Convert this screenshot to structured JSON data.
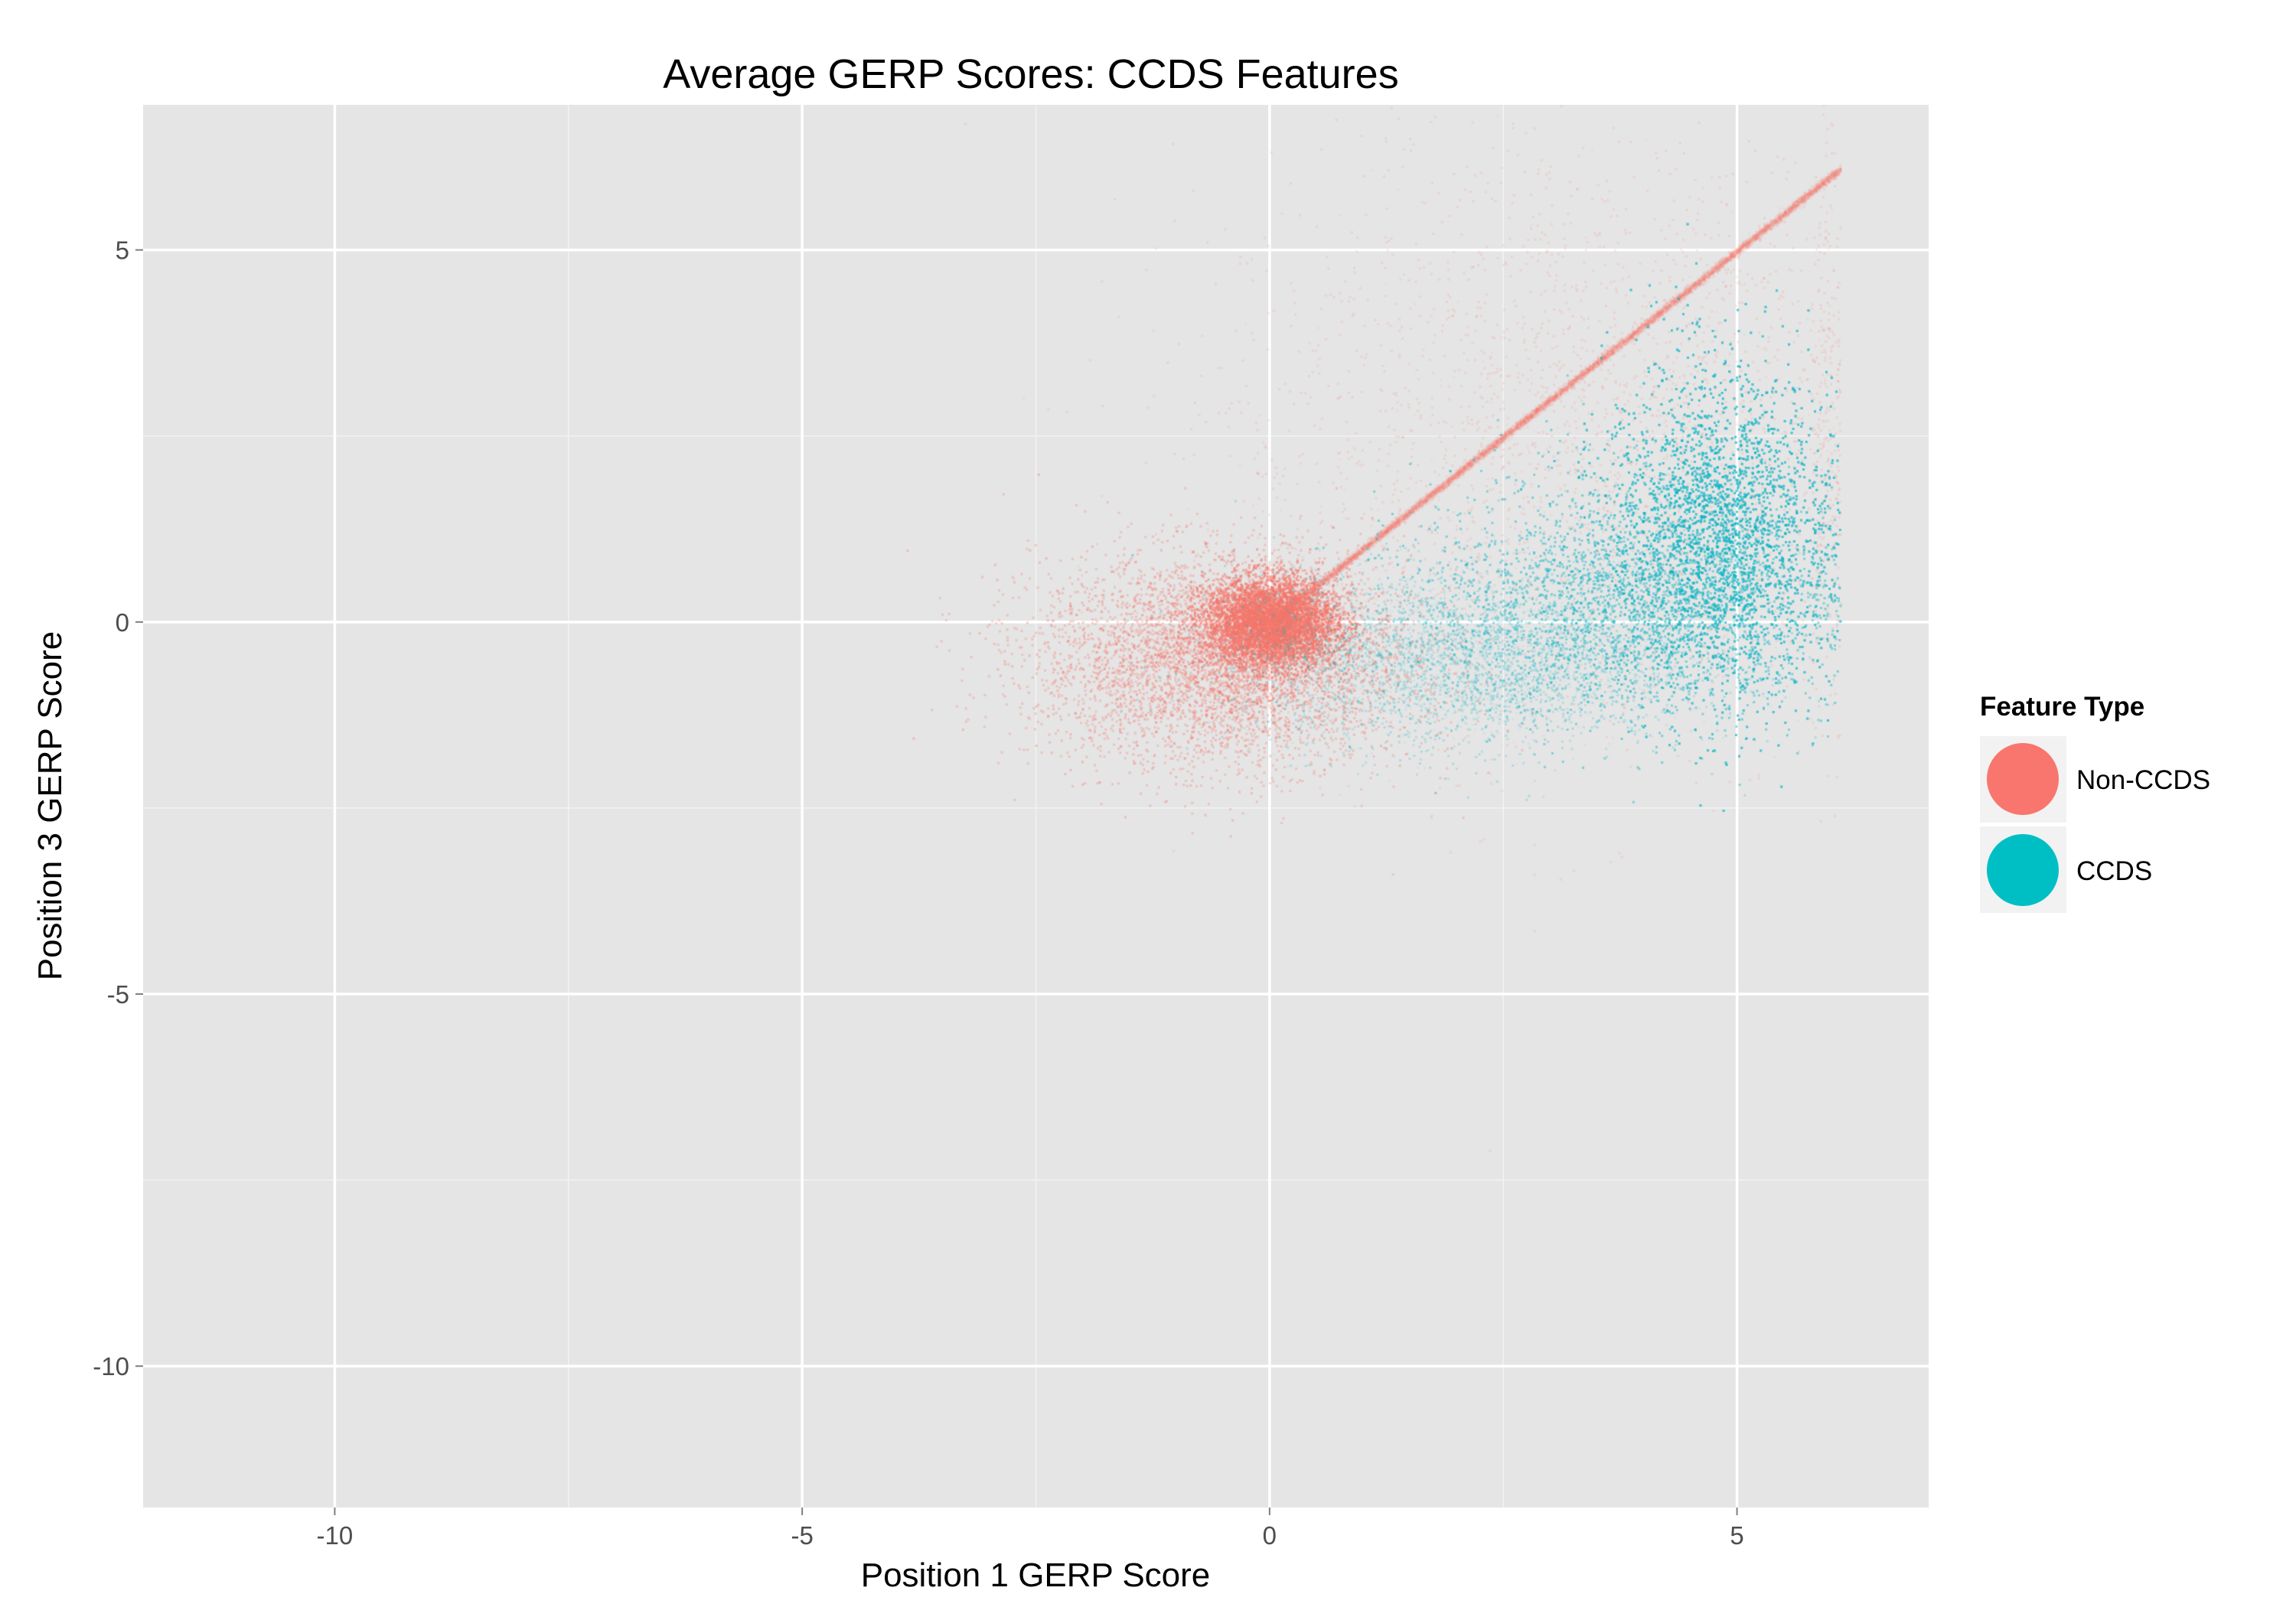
{
  "chart_data": {
    "type": "scatter",
    "title": "Average GERP Scores: CCDS Features",
    "xlabel": "Position 1 GERP Score",
    "ylabel": "Position 3 GERP Score",
    "xlim": [
      -12.05,
      7.05
    ],
    "ylim": [
      -11.9,
      6.95
    ],
    "x_ticks": [
      -10,
      -5,
      0,
      5
    ],
    "x_tick_labels": [
      "-10",
      "-5",
      "0",
      "5"
    ],
    "y_ticks": [
      5,
      0,
      -5,
      -10
    ],
    "y_tick_labels": [
      "5",
      "0",
      "-5",
      "-10"
    ],
    "grid": true,
    "legend": {
      "title": "Feature Type",
      "placement": "right",
      "entries": [
        {
          "label": "Non-CCDS",
          "color": "#F8766D"
        },
        {
          "label": "CCDS",
          "color": "#00BFC4"
        }
      ]
    },
    "series": [
      {
        "name": "Non-CCDS",
        "color": "#F8766D",
        "clusters": [
          {
            "x_center": 0.0,
            "y_center": 0.0,
            "x_spread": 0.35,
            "y_spread": 0.3,
            "density": "very high"
          },
          {
            "x_center": -0.5,
            "y_center": -0.5,
            "x_spread": 1.0,
            "y_spread": 0.7,
            "density": "high"
          },
          {
            "x_center": 3.5,
            "y_center": 2.5,
            "x_spread": 2.0,
            "y_spread": 2.0,
            "density": "low"
          },
          {
            "x_range": [
              0,
              6.1
            ],
            "y_equals_x": true,
            "description": "diagonal line y = x",
            "density": "medium"
          }
        ]
      },
      {
        "name": "CCDS",
        "color": "#00BFC4",
        "clusters": [
          {
            "x_center": 4.8,
            "y_center": 1.2,
            "x_spread": 0.6,
            "y_spread": 1.1,
            "density": "very high"
          },
          {
            "x_center": 3.8,
            "y_center": 0.3,
            "x_spread": 1.1,
            "y_spread": 0.8,
            "density": "high"
          },
          {
            "x_center": 2.0,
            "y_center": -0.5,
            "x_spread": 1.2,
            "y_spread": 0.6,
            "density": "medium"
          }
        ]
      }
    ]
  }
}
